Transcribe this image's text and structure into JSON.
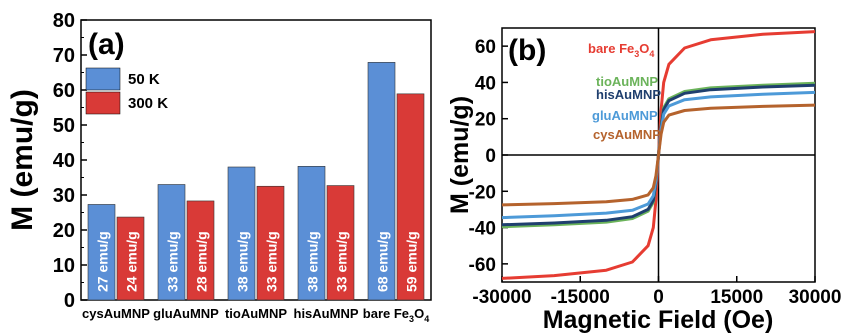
{
  "chart_data": [
    {
      "type": "bar",
      "panel_label": "(a)",
      "ylabel": "M (emu/g)",
      "ylim": [
        0,
        80
      ],
      "yticks": [
        "0",
        "10",
        "20",
        "30",
        "40",
        "50",
        "60",
        "70",
        "80"
      ],
      "categories": [
        "cysAuMNP",
        "gluAuMNP",
        "tioAuMNP",
        "hisAuMNP",
        "bare Fe"
      ],
      "category_subscript": [
        "",
        "",
        "",
        "",
        "3"
      ],
      "category_tail": [
        "",
        "",
        "",
        "",
        "O"
      ],
      "category_tail_subscript": [
        "",
        "",
        "",
        "",
        "4"
      ],
      "legend_position": "top-left",
      "series": [
        {
          "name": "50 K",
          "color": "#5b8fd6",
          "values": [
            27.3,
            33.0,
            38.0,
            38.2,
            67.9
          ],
          "data_labels": [
            "27 emu/g",
            "33 emu/g",
            "38 emu/g",
            "38 emu/g",
            "68 emu/g"
          ]
        },
        {
          "name": "300 K",
          "color": "#d93a37",
          "values": [
            23.7,
            28.3,
            32.5,
            32.7,
            58.9
          ],
          "data_labels": [
            "24 emu/g",
            "28 emu/g",
            "33 emu/g",
            "33 emu/g",
            "59 emu/g"
          ]
        }
      ]
    },
    {
      "type": "line",
      "panel_label": "(b)",
      "xlabel": "Magnetic Field (Oe)",
      "ylabel": "M (emu/g)",
      "xlim": [
        -30000,
        30000
      ],
      "ylim": [
        -70,
        70
      ],
      "xticks": [
        "-30000",
        "-15000",
        "0",
        "15000",
        "30000"
      ],
      "yticks": [
        "-60",
        "-40",
        "-20",
        "0",
        "20",
        "40",
        "60"
      ],
      "x": [
        -30000,
        -20000,
        -10000,
        -5000,
        -2000,
        -1000,
        -500,
        0,
        500,
        1000,
        2000,
        5000,
        10000,
        20000,
        30000
      ],
      "series": [
        {
          "name": "bare Fe3O4",
          "label_main": "bare Fe",
          "label_sub1": "3",
          "label_mid": "O",
          "label_sub2": "4",
          "color": "#e63c32",
          "values": [
            -68,
            -66.5,
            -63.5,
            -59,
            -50,
            -40,
            -25,
            0,
            25,
            40,
            50,
            59,
            63.5,
            66.5,
            68
          ]
        },
        {
          "name": "tioAuMNP",
          "label_main": "tioAuMNP",
          "color": "#6bb35a",
          "values": [
            -39.5,
            -38.5,
            -37,
            -35,
            -31,
            -26,
            -16,
            0,
            16,
            26,
            31,
            35,
            37,
            38.5,
            39.5
          ]
        },
        {
          "name": "hisAuMNP",
          "label_main": "hisAuMNP",
          "color": "#1f3f6e",
          "values": [
            -38.5,
            -37.5,
            -36,
            -34,
            -30,
            -25,
            -15.5,
            0,
            15.5,
            25,
            30,
            34,
            36,
            37.5,
            38.5
          ]
        },
        {
          "name": "gluAuMNP",
          "label_main": "gluAuMNP",
          "color": "#4d9ad8",
          "values": [
            -34.5,
            -33.5,
            -32,
            -30.5,
            -27,
            -22.5,
            -14,
            0,
            14,
            22.5,
            27,
            30.5,
            32,
            33.5,
            34.5
          ]
        },
        {
          "name": "cysAuMNP",
          "label_main": "cysAuMNP",
          "color": "#b5632d",
          "values": [
            -27.5,
            -26.8,
            -25.8,
            -24.5,
            -22,
            -18,
            -11.5,
            0,
            11.5,
            18,
            22,
            24.5,
            25.8,
            26.8,
            27.5
          ]
        }
      ]
    }
  ]
}
